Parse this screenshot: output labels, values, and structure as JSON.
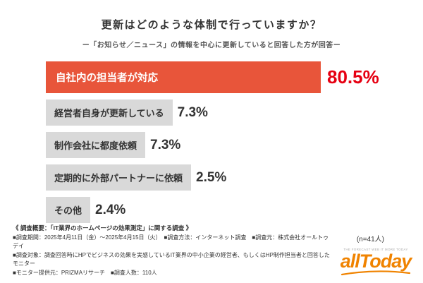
{
  "title": "更新はどのような体制で行っていますか？",
  "subtitle": "ー「お知らせ／ニュース」の情報を中心に更新していると回答した方が回答ー",
  "chart_data": {
    "type": "bar",
    "orientation": "horizontal",
    "categories": [
      "自社内の担当者が対応",
      "経営者自身が更新している",
      "制作会社に都度依頼",
      "定期的に外部パートナーに依頼",
      "その他"
    ],
    "values": [
      80.5,
      7.3,
      7.3,
      2.5,
      2.4
    ],
    "value_labels": [
      "80.5%",
      "7.3%",
      "7.3%",
      "2.5%",
      "2.4%"
    ],
    "sample_note": "(n=41人)",
    "colors": {
      "highlight_bar": "#e8553a",
      "highlight_pct": "#e60012",
      "bar": "#d9d9d9",
      "pct": "#333333"
    },
    "legend": false,
    "grid": false
  },
  "footer": {
    "survey_title": "《 調査概要：「IT業界のホームページの効果測定」に関する調査 》",
    "lines": [
      "■調査期間：2025年4月11日（金）～2025年4月15日（火）　■調査方法：インターネット調査　■調査元：株式会社オールトゥデイ",
      "■調査対象：調査回答時にHPでビジネスの効果を実感しているIT業界の中小企業の経営者、もしくはHP制作担当者と回答したモニター",
      "■モニター提供元：PRIZMAリサーチ　■調査人数：110人"
    ]
  },
  "logo": {
    "tagline": "THE FORECAST WEB IT MORE TODAY",
    "text": "allToday",
    "color": "#f08300"
  }
}
